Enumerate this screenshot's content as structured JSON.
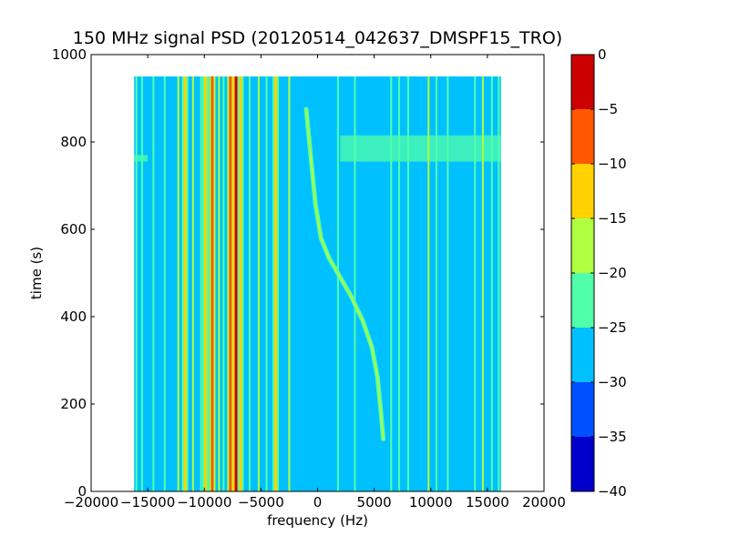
{
  "chart_data": {
    "type": "heatmap",
    "title": "150 MHz signal PSD (20120514_042637_DMSPF15_TRO)",
    "xlabel": "frequency (Hz)",
    "ylabel": "time (s)",
    "xlim": [
      -20000,
      20000
    ],
    "ylim": [
      0,
      1000
    ],
    "xticks": [
      -20000,
      -15000,
      -10000,
      -5000,
      0,
      5000,
      10000,
      15000,
      20000
    ],
    "yticks": [
      0,
      200,
      400,
      600,
      800,
      1000
    ],
    "data_extent": {
      "x": [
        -16200,
        16200
      ],
      "y": [
        0,
        950
      ]
    },
    "background_level": -27.5,
    "colorbar": {
      "ticks": [
        0,
        -5,
        -10,
        -15,
        -20,
        -25,
        -30,
        -35,
        -40
      ],
      "levels": [
        {
          "range": [
            -40,
            -35
          ],
          "color": "#0000cd"
        },
        {
          "range": [
            -35,
            -30
          ],
          "color": "#0050ff"
        },
        {
          "range": [
            -30,
            -25
          ],
          "color": "#00c0ff"
        },
        {
          "range": [
            -25,
            -20
          ],
          "color": "#50ffaa"
        },
        {
          "range": [
            -20,
            -15
          ],
          "color": "#b0ff40"
        },
        {
          "range": [
            -15,
            -10
          ],
          "color": "#ffd200"
        },
        {
          "range": [
            -10,
            -5
          ],
          "color": "#ff5800"
        },
        {
          "range": [
            -5,
            0
          ],
          "color": "#cc0000"
        }
      ]
    },
    "vertical_lines": [
      {
        "x": -16000,
        "level": -22.5
      },
      {
        "x": -15500,
        "level": -22.5
      },
      {
        "x": -14500,
        "level": -22.5
      },
      {
        "x": -13500,
        "level": -22.5
      },
      {
        "x": -12300,
        "level": -17.5
      },
      {
        "x": -11700,
        "level": -12.5
      },
      {
        "x": -11000,
        "level": -17.5
      },
      {
        "x": -10300,
        "level": -22.5
      },
      {
        "x": -9900,
        "level": -12.5
      },
      {
        "x": -9300,
        "level": -7.5
      },
      {
        "x": -8700,
        "level": -17.5
      },
      {
        "x": -8300,
        "level": -22.5
      },
      {
        "x": -7700,
        "level": -7.5
      },
      {
        "x": -7200,
        "level": -2.5
      },
      {
        "x": -6800,
        "level": -12.5
      },
      {
        "x": -6000,
        "level": -22.5
      },
      {
        "x": -5200,
        "level": -17.5
      },
      {
        "x": -4500,
        "level": -22.5
      },
      {
        "x": -3700,
        "level": -12.5
      },
      {
        "x": -2500,
        "level": -17.5
      },
      {
        "x": 1800,
        "level": -22.5
      },
      {
        "x": 3300,
        "level": -22.5
      },
      {
        "x": 6500,
        "level": -22.5
      },
      {
        "x": 7200,
        "level": -22.5
      },
      {
        "x": 8000,
        "level": -22.5
      },
      {
        "x": 9800,
        "level": -17.5
      },
      {
        "x": 10500,
        "level": -22.5
      },
      {
        "x": 11500,
        "level": -22.5
      },
      {
        "x": 13900,
        "level": -22.5
      },
      {
        "x": 14600,
        "level": -17.5
      },
      {
        "x": 15400,
        "level": -22.5
      },
      {
        "x": 16000,
        "level": -22.5
      }
    ],
    "horizontal_bands": [
      {
        "y": [
          755,
          815
        ],
        "x": [
          2000,
          16200
        ],
        "level": -22.5
      },
      {
        "y": [
          755,
          770
        ],
        "x": [
          -16200,
          -15000
        ],
        "level": -22.5
      }
    ],
    "doppler_trace": {
      "level": -17.5,
      "points": [
        [
          -1000,
          875
        ],
        [
          -800,
          820
        ],
        [
          -500,
          740
        ],
        [
          -200,
          660
        ],
        [
          300,
          580
        ],
        [
          1000,
          535
        ],
        [
          2000,
          490
        ],
        [
          3000,
          445
        ],
        [
          4000,
          390
        ],
        [
          4800,
          330
        ],
        [
          5300,
          260
        ],
        [
          5600,
          180
        ],
        [
          5800,
          120
        ]
      ]
    }
  }
}
